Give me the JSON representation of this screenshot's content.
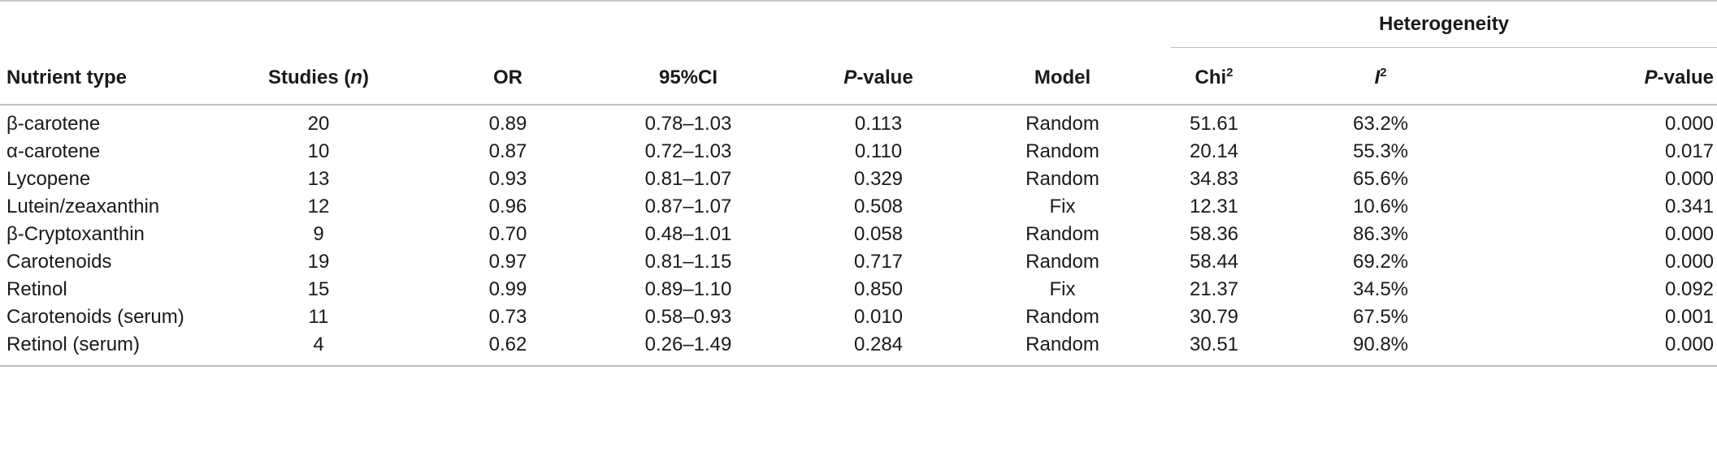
{
  "table": {
    "group_header": "Heterogeneity",
    "headers": {
      "nutrient_type": "Nutrient type",
      "studies_prefix": "Studies (",
      "studies_n": "n",
      "studies_suffix": ")",
      "or": "OR",
      "ci": "95%CI",
      "p_italic": "P",
      "p_rest": "-value",
      "model": "Model",
      "chi_base": "Chi",
      "chi_sup": "2",
      "i_base": "I",
      "i_sup": "2",
      "het_p_italic": "P",
      "het_p_rest": "-value"
    },
    "rows": [
      {
        "nutrient": "β-carotene",
        "studies": "20",
        "or": "0.89",
        "ci": "0.78–1.03",
        "p": "0.113",
        "model": "Random",
        "chi2": "51.61",
        "i2": "63.2%",
        "het_p": "0.000"
      },
      {
        "nutrient": "α-carotene",
        "studies": "10",
        "or": "0.87",
        "ci": "0.72–1.03",
        "p": "0.110",
        "model": "Random",
        "chi2": "20.14",
        "i2": "55.3%",
        "het_p": "0.017"
      },
      {
        "nutrient": "Lycopene",
        "studies": "13",
        "or": "0.93",
        "ci": "0.81–1.07",
        "p": "0.329",
        "model": "Random",
        "chi2": "34.83",
        "i2": "65.6%",
        "het_p": "0.000"
      },
      {
        "nutrient": "Lutein/zeaxanthin",
        "studies": "12",
        "or": "0.96",
        "ci": "0.87–1.07",
        "p": "0.508",
        "model": "Fix",
        "chi2": "12.31",
        "i2": "10.6%",
        "het_p": "0.341"
      },
      {
        "nutrient": "β-Cryptoxanthin",
        "studies": "9",
        "or": "0.70",
        "ci": "0.48–1.01",
        "p": "0.058",
        "model": "Random",
        "chi2": "58.36",
        "i2": "86.3%",
        "het_p": "0.000"
      },
      {
        "nutrient": "Carotenoids",
        "studies": "19",
        "or": "0.97",
        "ci": "0.81–1.15",
        "p": "0.717",
        "model": "Random",
        "chi2": "58.44",
        "i2": "69.2%",
        "het_p": "0.000"
      },
      {
        "nutrient": "Retinol",
        "studies": "15",
        "or": "0.99",
        "ci": "0.89–1.10",
        "p": "0.850",
        "model": "Fix",
        "chi2": "21.37",
        "i2": "34.5%",
        "het_p": "0.092"
      },
      {
        "nutrient": "Carotenoids (serum)",
        "studies": "11",
        "or": "0.73",
        "ci": "0.58–0.93",
        "p": "0.010",
        "model": "Random",
        "chi2": "30.79",
        "i2": "67.5%",
        "het_p": "0.001"
      },
      {
        "nutrient": "Retinol (serum)",
        "studies": "4",
        "or": "0.62",
        "ci": "0.26–1.49",
        "p": "0.284",
        "model": "Random",
        "chi2": "30.51",
        "i2": "90.8%",
        "het_p": "0.000"
      }
    ]
  }
}
